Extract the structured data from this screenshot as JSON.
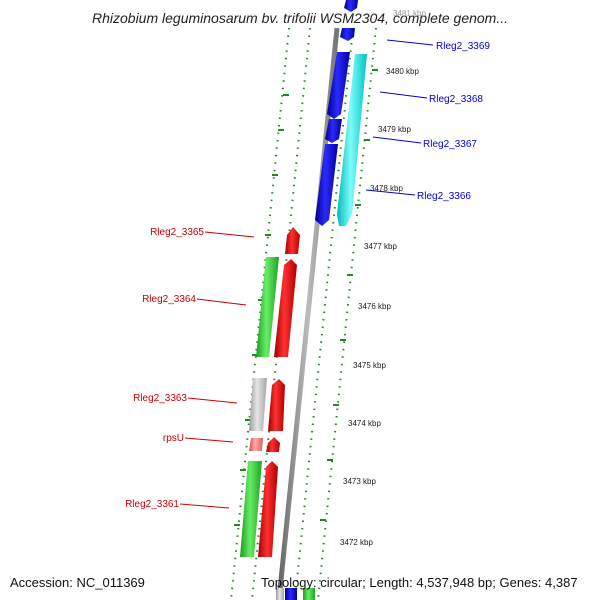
{
  "map": {
    "title": "Rhizobium leguminosarum bv. trifolii WSM2304, complete genom...",
    "accession": "Accession: NC_011369",
    "topology": "Topology: circular; Length: 4,537,948 bp; Genes: 4,387"
  },
  "ticks": [
    "3481 kbp",
    "3480 kbp",
    "3479 kbp",
    "3478 kbp",
    "3477 kbp",
    "3476 kbp",
    "3475 kbp",
    "3474 kbp",
    "3473 kbp",
    "3472 kbp"
  ],
  "genes_reverse": [
    "Rleg2_3369",
    "Rleg2_3368",
    "Rleg2_3367",
    "Rleg2_3366"
  ],
  "genes_forward": [
    "Rleg2_3365",
    "Rleg2_3364",
    "Rleg2_3363",
    "rpsU",
    "Rleg2_3361"
  ],
  "colors": {
    "reverse_label": "#0000dd",
    "forward_label": "#cc0000",
    "cds_forward": "#ee0000",
    "cds_reverse": "#0000ee",
    "orf_green": "#33cc33",
    "orf_cyan": "#00eeee",
    "backbone": "#888888",
    "grid_dots": "#228822"
  }
}
